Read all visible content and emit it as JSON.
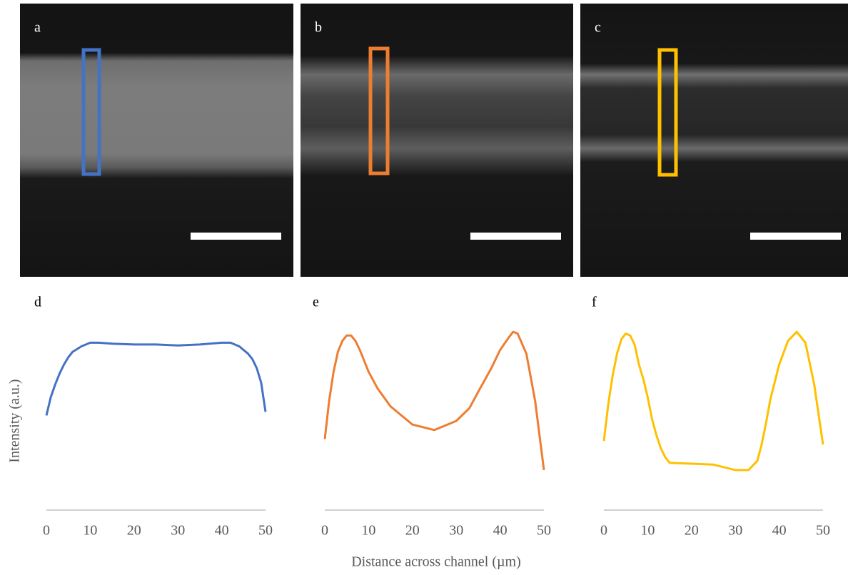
{
  "panels": [
    {
      "label": "a"
    },
    {
      "label": "b"
    },
    {
      "label": "c"
    }
  ],
  "ylabel": "Intensity (a.u.)",
  "xlabel": "Distance across channel (µm)",
  "chart_data": [
    {
      "type": "line",
      "label": "d",
      "color": "#4472c4",
      "xlim": [
        0,
        50
      ],
      "xticks": [
        0,
        10,
        20,
        30,
        40,
        50
      ],
      "ylim": [
        0,
        100
      ],
      "x": [
        0,
        1,
        2,
        3,
        4,
        5,
        6,
        8,
        10,
        12,
        15,
        20,
        25,
        30,
        35,
        40,
        42,
        44,
        46,
        47,
        48,
        49,
        50
      ],
      "values": [
        52,
        62,
        69,
        75,
        80,
        84,
        87,
        90,
        92,
        92,
        91.5,
        91,
        91,
        90.5,
        91,
        92,
        92,
        90,
        86,
        83,
        78,
        70,
        54
      ]
    },
    {
      "type": "line",
      "label": "e",
      "color": "#ed7d31",
      "xlim": [
        0,
        50
      ],
      "xticks": [
        0,
        10,
        20,
        30,
        40,
        50
      ],
      "ylim": [
        0,
        100
      ],
      "x": [
        0,
        1,
        2,
        3,
        4,
        5,
        6,
        7,
        8,
        10,
        12,
        15,
        20,
        25,
        30,
        33,
        35,
        38,
        40,
        42,
        43,
        44,
        46,
        48,
        50
      ],
      "values": [
        39,
        60,
        76,
        87,
        93,
        96,
        96,
        93,
        88,
        76,
        67,
        57,
        47,
        44,
        49,
        56,
        65,
        78,
        88,
        95,
        98,
        97,
        86,
        60,
        22
      ]
    },
    {
      "type": "line",
      "label": "f",
      "color": "#ffc000",
      "xlim": [
        0,
        50
      ],
      "xticks": [
        0,
        10,
        20,
        30,
        40,
        50
      ],
      "ylim": [
        0,
        100
      ],
      "x": [
        0,
        1,
        2,
        3,
        4,
        5,
        6,
        7,
        8,
        9,
        10,
        11,
        12,
        13,
        14,
        15,
        20,
        25,
        30,
        33,
        35,
        36,
        37,
        38,
        40,
        42,
        44,
        46,
        48,
        50
      ],
      "values": [
        38,
        58,
        74,
        86,
        94,
        97,
        96,
        91,
        80,
        72,
        62,
        50,
        41,
        34,
        29,
        26,
        25.5,
        25,
        22,
        22,
        27,
        36,
        48,
        61,
        80,
        93,
        98,
        92,
        69,
        36
      ]
    }
  ]
}
